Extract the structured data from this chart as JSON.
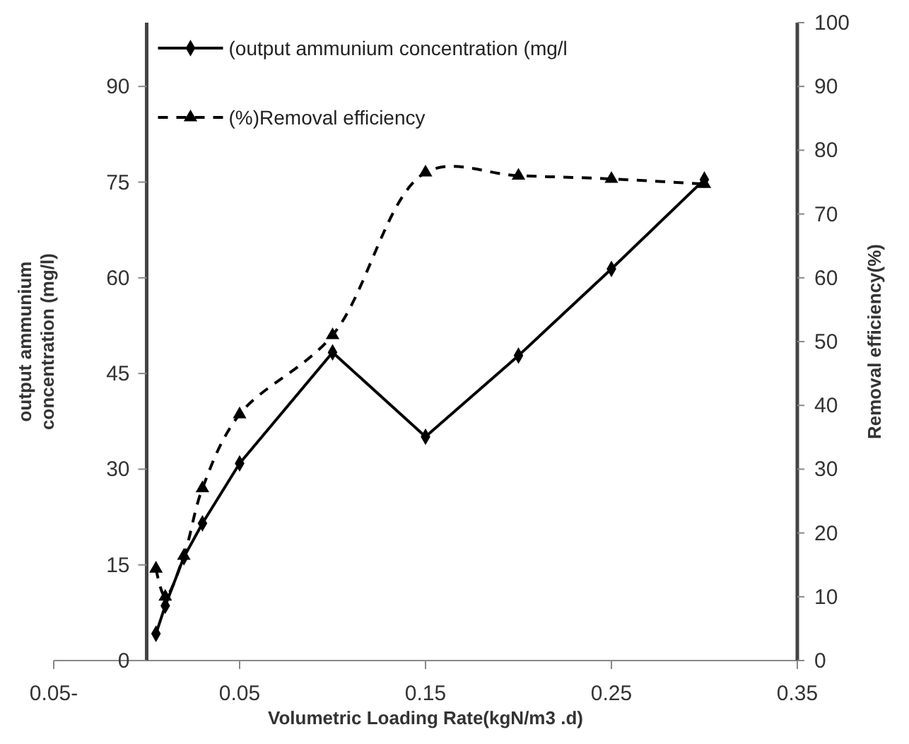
{
  "chart_data": {
    "type": "line",
    "xlabel": "Volumetric Loading Rate(kgN/m3 .d)",
    "ylabel": "output ammunium concentration (mg/l)",
    "y2label": "Removal efficiency(%)",
    "xlim": [
      -0.05,
      0.35
    ],
    "xticks": [
      {
        "value": -0.05,
        "label": "0.05-"
      },
      0.05,
      0.15,
      0.25,
      0.35
    ],
    "ylim": [
      0,
      100
    ],
    "yticks": [
      0,
      15,
      30,
      45,
      60,
      75,
      90
    ],
    "y2lim": [
      0,
      100
    ],
    "y2ticks": [
      0,
      10,
      20,
      30,
      40,
      50,
      60,
      70,
      80,
      90,
      100
    ],
    "legend": "top left",
    "grid": false,
    "series": [
      {
        "name": "(output ammunium concentration (mg/l",
        "color": "#000000",
        "marker": "diamond",
        "line_style": "solid",
        "x": [
          0.005,
          0.01,
          0.02,
          0.03,
          0.05,
          0.1,
          0.15,
          0.2,
          0.25,
          0.3
        ],
        "values": [
          4.2,
          8.6,
          16.2,
          21.5,
          30.9,
          48.3,
          35.1,
          47.8,
          61.4,
          75.4
        ]
      },
      {
        "name": "(%)Removal efficiency",
        "color": "#000000",
        "marker": "triangle",
        "line_style": "dashed",
        "axis": "y2",
        "x": [
          0.005,
          0.01,
          0.02,
          0.03,
          0.05,
          0.1,
          0.15,
          0.2,
          0.25,
          0.3
        ],
        "values": [
          14.4,
          10,
          16.4,
          27,
          38.6,
          51,
          76.5,
          76,
          75.5,
          74.7
        ]
      }
    ]
  }
}
